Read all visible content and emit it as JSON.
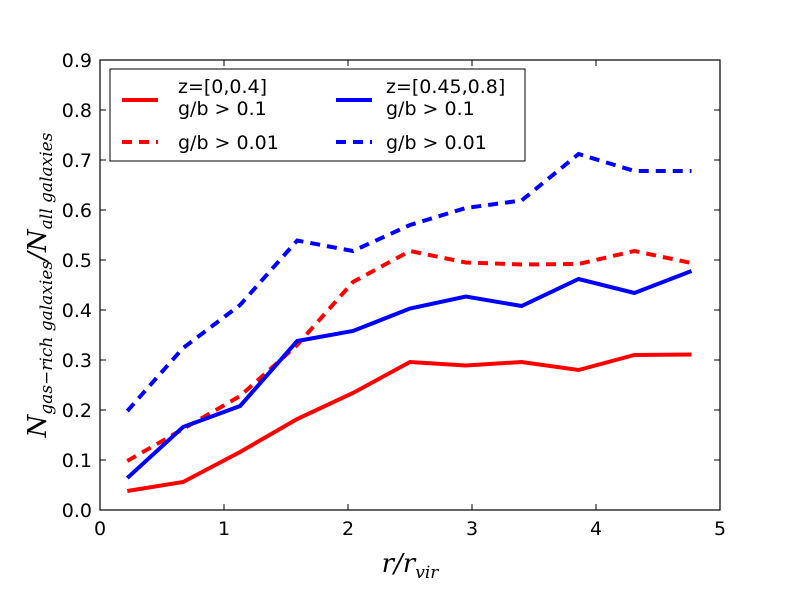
{
  "chart_data": {
    "type": "line",
    "xlabel": {
      "base": "r/r",
      "sub": "vir"
    },
    "ylabel": {
      "base1": "N",
      "sub1": "gas−rich galaxies",
      "slash": "/N",
      "sub2": "all galaxies"
    },
    "xlim": [
      0,
      5
    ],
    "ylim": [
      0,
      0.9
    ],
    "xticks": [
      "0",
      "1",
      "2",
      "3",
      "4",
      "5"
    ],
    "yticks": [
      "0.0",
      "0.1",
      "0.2",
      "0.3",
      "0.4",
      "0.5",
      "0.6",
      "0.7",
      "0.8",
      "0.9"
    ],
    "legend_position": "top-left",
    "x": [
      0.22,
      0.67,
      1.13,
      1.59,
      2.04,
      2.5,
      2.95,
      3.4,
      3.86,
      4.31,
      4.77
    ],
    "series": [
      {
        "name": "z=[0,0.4] g/b > 0.1",
        "color": "#ff0000",
        "style": "solid",
        "values": [
          0.038,
          0.056,
          0.116,
          0.182,
          0.234,
          0.296,
          0.289,
          0.296,
          0.28,
          0.31,
          0.311
        ]
      },
      {
        "name": "z=[0,0.4] g/b > 0.01",
        "color": "#ff0000",
        "style": "dashed",
        "values": [
          0.098,
          0.162,
          0.228,
          0.33,
          0.456,
          0.518,
          0.495,
          0.491,
          0.492,
          0.518,
          0.494
        ]
      },
      {
        "name": "z=[0.45,0.8] g/b > 0.1",
        "color": "#0000ff",
        "style": "solid",
        "values": [
          0.064,
          0.166,
          0.208,
          0.338,
          0.358,
          0.403,
          0.427,
          0.408,
          0.462,
          0.434,
          0.478
        ]
      },
      {
        "name": "z=[0.45,0.8] g/b > 0.01",
        "color": "#0000ff",
        "style": "dashed",
        "values": [
          0.198,
          0.324,
          0.41,
          0.539,
          0.518,
          0.57,
          0.604,
          0.619,
          0.712,
          0.678,
          0.678
        ]
      }
    ],
    "legend": [
      {
        "line1": "z=[0,0.4]",
        "line2": "g/b > 0.1",
        "color": "#ff0000",
        "style": "solid"
      },
      {
        "line1": "z=[0.45,0.8]",
        "line2": "g/b > 0.1",
        "color": "#0000ff",
        "style": "solid"
      },
      {
        "line1": "g/b > 0.01",
        "color": "#ff0000",
        "style": "dashed"
      },
      {
        "line1": "g/b > 0.01",
        "color": "#0000ff",
        "style": "dashed"
      }
    ]
  }
}
